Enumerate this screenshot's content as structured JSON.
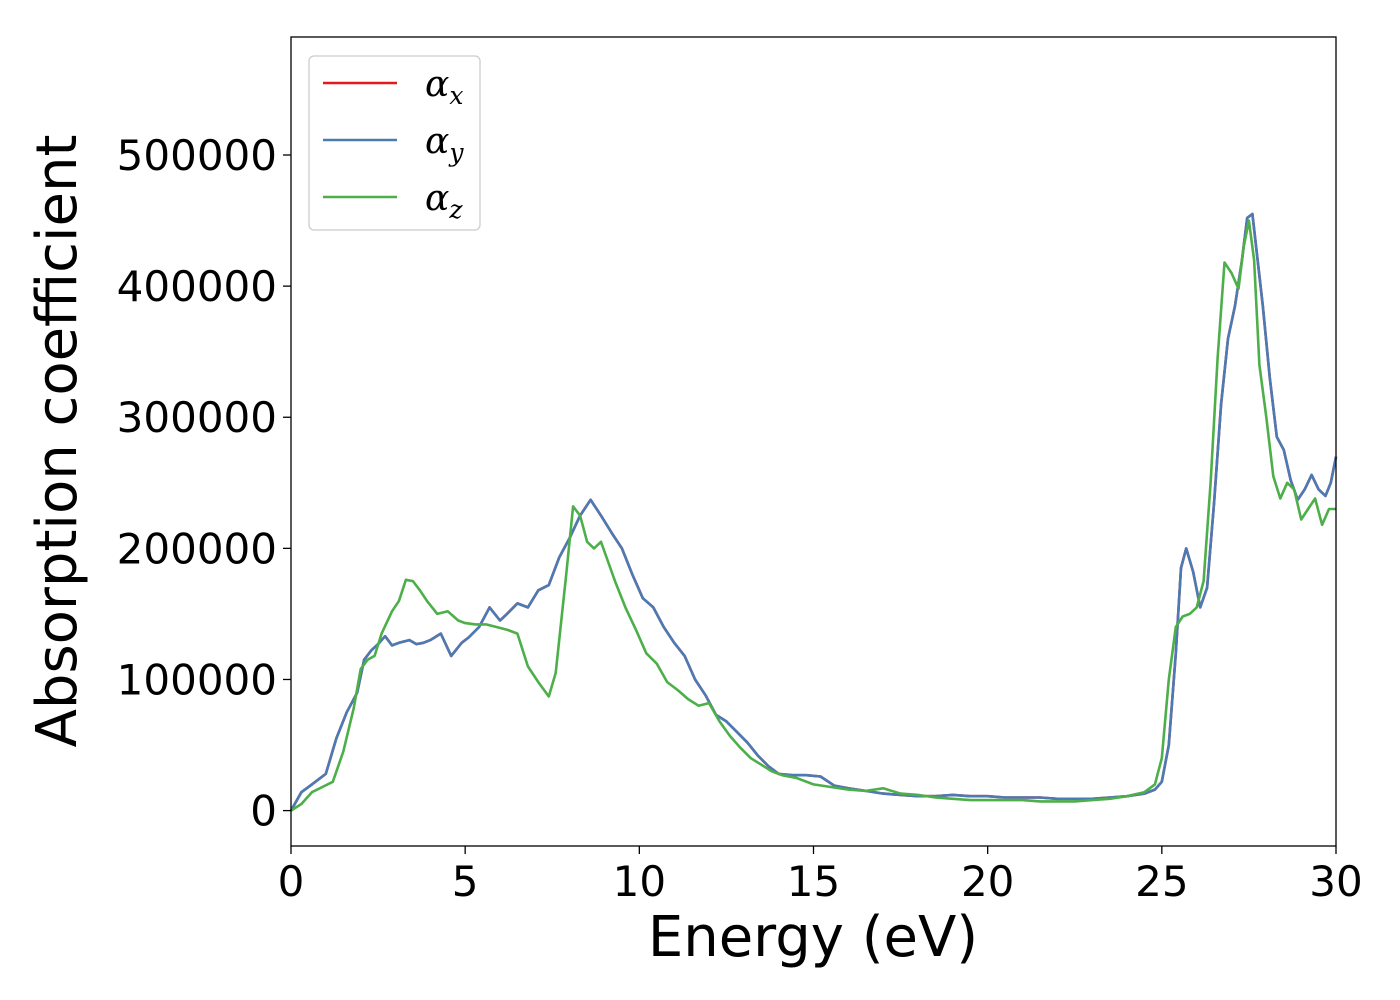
{
  "chart_data": {
    "type": "line",
    "title": "",
    "xlabel": "Energy (eV)",
    "ylabel": "Absorption coefficient",
    "xlim": [
      0,
      30
    ],
    "ylim": [
      -27000,
      590000
    ],
    "xticks": [
      0,
      5,
      10,
      15,
      20,
      25,
      30
    ],
    "yticks": [
      0,
      100000,
      200000,
      300000,
      400000,
      500000
    ],
    "xtick_labels": [
      "0",
      "5",
      "10",
      "15",
      "20",
      "25",
      "30"
    ],
    "ytick_labels": [
      "0",
      "100000",
      "200000",
      "300000",
      "400000",
      "500000"
    ],
    "grid": false,
    "legend_position": "top-left",
    "series": [
      {
        "name": "α",
        "subscript": "x",
        "color": "#e41a1c",
        "x": [
          0,
          0.3,
          0.6,
          1.0,
          1.3,
          1.6,
          1.9,
          2.1,
          2.3,
          2.5,
          2.7,
          2.9,
          3.1,
          3.4,
          3.6,
          3.8,
          4.0,
          4.3,
          4.6,
          4.9,
          5.1,
          5.4,
          5.7,
          6.0,
          6.2,
          6.5,
          6.8,
          7.1,
          7.4,
          7.7,
          8.0,
          8.3,
          8.6,
          8.9,
          9.2,
          9.5,
          9.8,
          10.1,
          10.4,
          10.7,
          11.0,
          11.3,
          11.6,
          11.9,
          12.2,
          12.5,
          12.8,
          13.1,
          13.4,
          13.7,
          14.0,
          14.4,
          14.8,
          15.2,
          15.6,
          16.0,
          16.5,
          17.0,
          17.5,
          18.0,
          18.5,
          19.0,
          19.5,
          20.0,
          20.5,
          21.0,
          21.5,
          22.0,
          22.5,
          23.0,
          23.5,
          24.0,
          24.5,
          24.8,
          25.0,
          25.2,
          25.4,
          25.55,
          25.7,
          25.9,
          26.1,
          26.3,
          26.5,
          26.7,
          26.9,
          27.1,
          27.3,
          27.45,
          27.6,
          27.75,
          27.9,
          28.1,
          28.3,
          28.5,
          28.7,
          28.9,
          29.1,
          29.3,
          29.5,
          29.7,
          29.85,
          30.0
        ],
        "values": [
          0,
          14000,
          20000,
          28000,
          55000,
          75000,
          90000,
          115000,
          122000,
          127000,
          133000,
          126000,
          128000,
          130000,
          127000,
          128000,
          130000,
          135000,
          118000,
          128000,
          132000,
          140000,
          155000,
          145000,
          150000,
          158000,
          155000,
          168000,
          172000,
          193000,
          208000,
          225000,
          237000,
          225000,
          212000,
          200000,
          180000,
          162000,
          155000,
          140000,
          128000,
          118000,
          100000,
          88000,
          73000,
          68000,
          60000,
          52000,
          42000,
          34000,
          28000,
          27000,
          27000,
          26000,
          19000,
          17000,
          15000,
          13000,
          12000,
          11000,
          11000,
          12000,
          11000,
          11000,
          10000,
          10000,
          10000,
          9000,
          9000,
          9000,
          10000,
          11000,
          13000,
          16000,
          22000,
          50000,
          120000,
          185000,
          200000,
          182000,
          155000,
          170000,
          235000,
          310000,
          360000,
          385000,
          420000,
          452000,
          455000,
          420000,
          385000,
          330000,
          285000,
          275000,
          252000,
          237000,
          245000,
          256000,
          245000,
          240000,
          250000,
          270000
        ]
      },
      {
        "name": "α",
        "subscript": "y",
        "color": "#4a7bb5",
        "x": [
          0,
          0.3,
          0.6,
          1.0,
          1.3,
          1.6,
          1.9,
          2.1,
          2.3,
          2.5,
          2.7,
          2.9,
          3.1,
          3.4,
          3.6,
          3.8,
          4.0,
          4.3,
          4.6,
          4.9,
          5.1,
          5.4,
          5.7,
          6.0,
          6.2,
          6.5,
          6.8,
          7.1,
          7.4,
          7.7,
          8.0,
          8.3,
          8.6,
          8.9,
          9.2,
          9.5,
          9.8,
          10.1,
          10.4,
          10.7,
          11.0,
          11.3,
          11.6,
          11.9,
          12.2,
          12.5,
          12.8,
          13.1,
          13.4,
          13.7,
          14.0,
          14.4,
          14.8,
          15.2,
          15.6,
          16.0,
          16.5,
          17.0,
          17.5,
          18.0,
          18.5,
          19.0,
          19.5,
          20.0,
          20.5,
          21.0,
          21.5,
          22.0,
          22.5,
          23.0,
          23.5,
          24.0,
          24.5,
          24.8,
          25.0,
          25.2,
          25.4,
          25.55,
          25.7,
          25.9,
          26.1,
          26.3,
          26.5,
          26.7,
          26.9,
          27.1,
          27.3,
          27.45,
          27.6,
          27.75,
          27.9,
          28.1,
          28.3,
          28.5,
          28.7,
          28.9,
          29.1,
          29.3,
          29.5,
          29.7,
          29.85,
          30.0
        ],
        "values": [
          0,
          14000,
          20000,
          28000,
          55000,
          75000,
          90000,
          115000,
          122000,
          127000,
          133000,
          126000,
          128000,
          130000,
          127000,
          128000,
          130000,
          135000,
          118000,
          128000,
          132000,
          140000,
          155000,
          145000,
          150000,
          158000,
          155000,
          168000,
          172000,
          193000,
          208000,
          225000,
          237000,
          225000,
          212000,
          200000,
          180000,
          162000,
          155000,
          140000,
          128000,
          118000,
          100000,
          88000,
          73000,
          68000,
          60000,
          52000,
          42000,
          34000,
          28000,
          27000,
          27000,
          26000,
          19000,
          17000,
          15000,
          13000,
          12000,
          11000,
          11000,
          12000,
          11000,
          11000,
          10000,
          10000,
          10000,
          9000,
          9000,
          9000,
          10000,
          11000,
          13000,
          16000,
          22000,
          50000,
          120000,
          185000,
          200000,
          182000,
          155000,
          170000,
          235000,
          310000,
          360000,
          385000,
          420000,
          452000,
          455000,
          420000,
          385000,
          330000,
          285000,
          275000,
          252000,
          237000,
          245000,
          256000,
          245000,
          240000,
          250000,
          270000
        ]
      },
      {
        "name": "α",
        "subscript": "z",
        "color": "#4daf4a",
        "x": [
          0,
          0.3,
          0.6,
          0.9,
          1.2,
          1.5,
          1.8,
          2.0,
          2.2,
          2.4,
          2.6,
          2.9,
          3.1,
          3.3,
          3.5,
          3.7,
          3.9,
          4.2,
          4.5,
          4.8,
          5.0,
          5.3,
          5.6,
          5.9,
          6.2,
          6.5,
          6.8,
          7.1,
          7.4,
          7.6,
          7.9,
          8.1,
          8.3,
          8.5,
          8.7,
          8.9,
          9.1,
          9.3,
          9.6,
          9.9,
          10.2,
          10.5,
          10.8,
          11.1,
          11.4,
          11.7,
          12.0,
          12.3,
          12.6,
          12.9,
          13.2,
          13.5,
          13.8,
          14.1,
          14.5,
          15.0,
          15.5,
          16.0,
          16.5,
          17.0,
          17.5,
          18.0,
          18.5,
          19.0,
          19.5,
          20.0,
          20.5,
          21.0,
          21.5,
          22.0,
          22.5,
          23.0,
          23.5,
          24.0,
          24.5,
          24.8,
          25.0,
          25.2,
          25.4,
          25.6,
          25.8,
          26.0,
          26.2,
          26.4,
          26.6,
          26.8,
          27.0,
          27.2,
          27.35,
          27.5,
          27.65,
          27.8,
          28.0,
          28.2,
          28.4,
          28.6,
          28.8,
          29.0,
          29.2,
          29.4,
          29.6,
          29.8,
          30.0
        ],
        "values": [
          0,
          5000,
          14000,
          18000,
          22000,
          45000,
          78000,
          108000,
          115000,
          118000,
          135000,
          152000,
          160000,
          176000,
          175000,
          168000,
          160000,
          150000,
          152000,
          145000,
          143000,
          142000,
          142000,
          140000,
          138000,
          135000,
          110000,
          98000,
          87000,
          105000,
          180000,
          232000,
          225000,
          205000,
          200000,
          205000,
          190000,
          175000,
          155000,
          138000,
          120000,
          112000,
          98000,
          92000,
          85000,
          80000,
          82000,
          68000,
          57000,
          48000,
          40000,
          35000,
          30000,
          27000,
          25000,
          20000,
          18000,
          16000,
          15000,
          17000,
          13000,
          12000,
          10000,
          9000,
          8000,
          8000,
          8000,
          8000,
          7000,
          7000,
          7000,
          8000,
          9000,
          11000,
          14000,
          20000,
          40000,
          100000,
          140000,
          148000,
          150000,
          155000,
          175000,
          250000,
          345000,
          418000,
          410000,
          398000,
          430000,
          450000,
          420000,
          340000,
          300000,
          255000,
          238000,
          250000,
          245000,
          222000,
          230000,
          238000,
          218000,
          230000,
          230000
        ]
      }
    ]
  }
}
